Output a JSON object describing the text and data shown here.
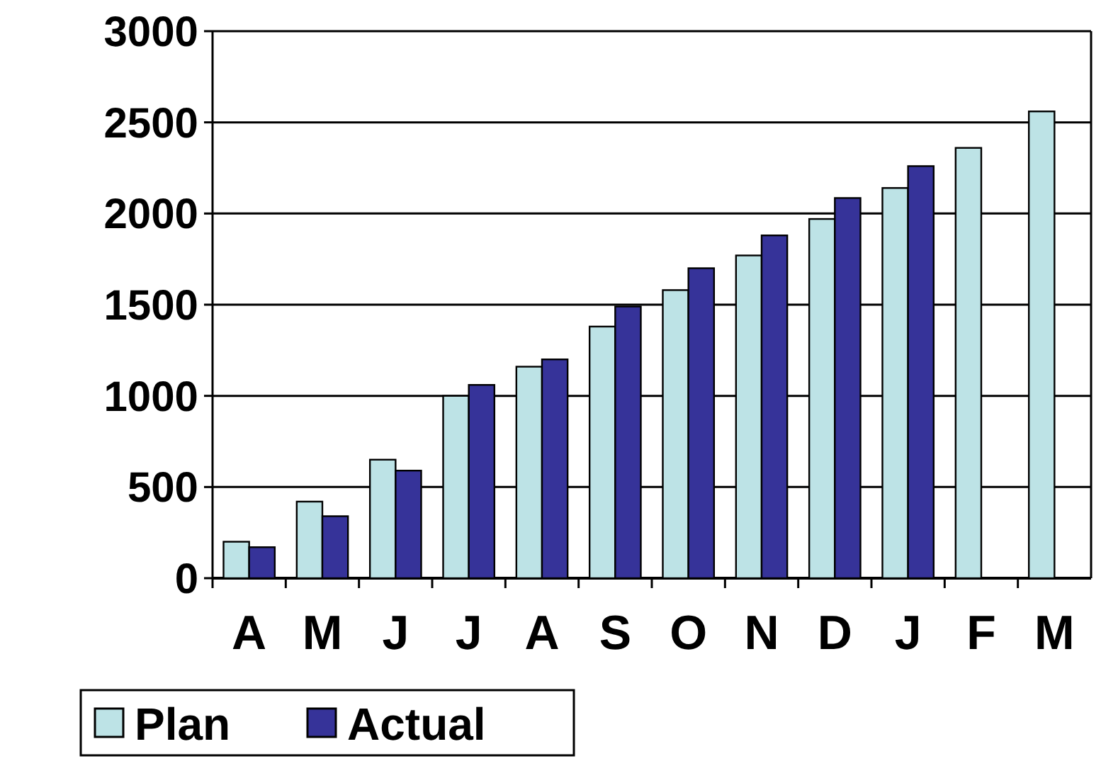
{
  "chart_data": {
    "type": "bar",
    "categories": [
      "A",
      "M",
      "J",
      "J",
      "A",
      "S",
      "O",
      "N",
      "D",
      "J",
      "F",
      "M"
    ],
    "series": [
      {
        "name": "Plan",
        "color": "#bde3e6",
        "values": [
          200,
          420,
          650,
          1000,
          1160,
          1380,
          1580,
          1770,
          1970,
          2140,
          2360,
          2560
        ]
      },
      {
        "name": "Actual",
        "color": "#363399",
        "values": [
          170,
          340,
          590,
          1060,
          1200,
          1490,
          1700,
          1880,
          2085,
          2260,
          null,
          null
        ]
      }
    ],
    "ylim": [
      0,
      3000
    ],
    "yticks": [
      0,
      500,
      1000,
      1500,
      2000,
      2500,
      3000
    ],
    "grid": "y",
    "legend": "bottom left"
  }
}
